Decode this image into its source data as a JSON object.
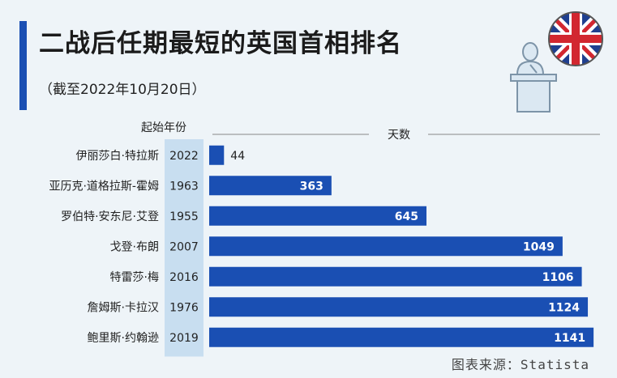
{
  "title": "二战后任期最短的英国首相排名",
  "subtitle": "（截至2022年10月20日）",
  "source": "图表来源：Statista",
  "colors": {
    "bar": "#1a4fb3",
    "accent": "#1a4fb3",
    "year_column": "#c8def0",
    "background": "#eef4f8"
  },
  "icons": [
    "union-jack-flag-icon",
    "podium-speaker-icon"
  ],
  "chart_data": {
    "type": "bar",
    "orientation": "horizontal",
    "year_header": "起始年份",
    "value_header": "天数",
    "xlim": [
      0,
      1160
    ],
    "grid": false,
    "categories": [
      "伊丽莎白·特拉斯",
      "亚历克·道格拉斯-霍姆",
      "罗伯特·安东尼·艾登",
      "戈登·布朗",
      "特雷莎·梅",
      "詹姆斯·卡拉汉",
      "鲍里斯·约翰逊"
    ],
    "start_years": [
      "2022",
      "1963",
      "1955",
      "2007",
      "2016",
      "1976",
      "2019"
    ],
    "values": [
      44,
      363,
      645,
      1049,
      1106,
      1124,
      1141
    ]
  }
}
